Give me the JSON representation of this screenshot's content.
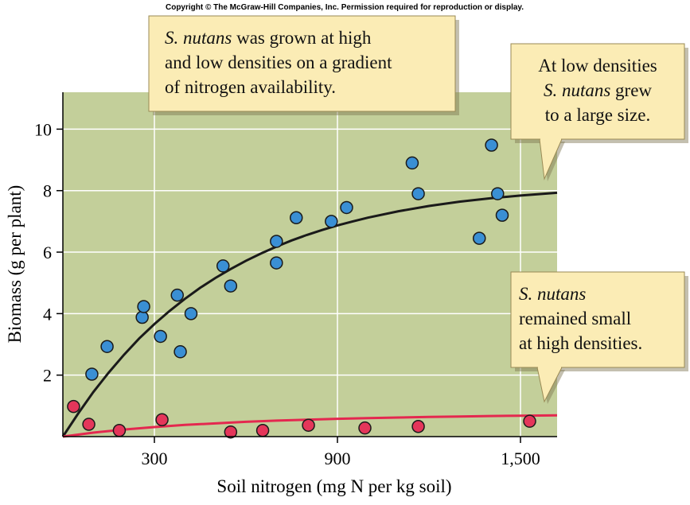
{
  "copyright": "Copyright © The McGraw-Hill Companies, Inc. Permission required for reproduction or display.",
  "colors": {
    "plot_background": "#c3cf9a",
    "grid": "#ffffff",
    "high_density_points": "#3a8fd4",
    "low_density_points": "#e4365a",
    "fit_high": "#1a1a1a",
    "fit_low": "#e4284f",
    "callout_fill": "#fbecb5",
    "callout_stroke": "#9a8a55"
  },
  "callouts": [
    {
      "id": "top",
      "lines": [
        [
          {
            "t": "S. nutans",
            "i": true
          },
          {
            "t": " was grown at high",
            "i": false
          }
        ],
        [
          {
            "t": "and low densities on a gradient",
            "i": false
          }
        ],
        [
          {
            "t": "of nitrogen availability.",
            "i": false
          }
        ]
      ]
    },
    {
      "id": "right-upper",
      "lines": [
        [
          {
            "t": "At low densities",
            "i": false
          }
        ],
        [
          {
            "t": "S. nutans",
            "i": true
          },
          {
            "t": " grew",
            "i": false
          }
        ],
        [
          {
            "t": "to a large size.",
            "i": false
          }
        ]
      ]
    },
    {
      "id": "right-lower",
      "lines": [
        [
          {
            "t": "S. nutans",
            "i": true
          }
        ],
        [
          {
            "t": "remained small",
            "i": false
          }
        ],
        [
          {
            "t": "at high densities.",
            "i": false
          }
        ]
      ]
    }
  ],
  "chart_data": {
    "type": "scatter",
    "title": "",
    "xlabel": "Soil nitrogen (mg N per kg soil)",
    "ylabel": "Biomass (g per plant)",
    "xlim": [
      0,
      1620
    ],
    "ylim": [
      0,
      11.2
    ],
    "xticks": [
      300,
      900,
      1500
    ],
    "xtick_labels": [
      "300",
      "900",
      "1,500"
    ],
    "yticks": [
      2,
      4,
      6,
      8,
      10
    ],
    "ytick_labels": [
      "2",
      "4",
      "6",
      "8",
      "10"
    ],
    "grid": true,
    "series": [
      {
        "style": "points",
        "color": "#3a8fd4",
        "x": [
          95,
          145,
          260,
          265,
          320,
          375,
          385,
          420,
          525,
          550,
          700,
          700,
          765,
          880,
          930,
          1145,
          1165,
          1365,
          1405,
          1425,
          1440
        ],
        "y": [
          2.03,
          2.93,
          3.88,
          4.23,
          3.26,
          4.6,
          2.76,
          4.0,
          5.55,
          4.9,
          6.35,
          5.65,
          7.12,
          7.0,
          7.45,
          8.9,
          7.9,
          6.45,
          9.48,
          7.9,
          7.2
        ]
      },
      {
        "style": "points",
        "color": "#e4365a",
        "x": [
          35,
          85,
          185,
          325,
          550,
          655,
          805,
          990,
          1165,
          1530
        ],
        "y": [
          0.98,
          0.4,
          0.2,
          0.55,
          0.15,
          0.2,
          0.37,
          0.28,
          0.33,
          0.5
        ]
      },
      {
        "style": "curve",
        "color": "#1a1a1a",
        "x": [
          0,
          50,
          100,
          150,
          200,
          250,
          300,
          350,
          400,
          450,
          500,
          550,
          600,
          650,
          700,
          750,
          800,
          850,
          900,
          950,
          1000,
          1100,
          1200,
          1300,
          1400,
          1500,
          1620
        ],
        "y": [
          0.0,
          0.75,
          1.45,
          2.08,
          2.66,
          3.19,
          3.66,
          4.09,
          4.48,
          4.84,
          5.16,
          5.45,
          5.72,
          5.96,
          6.18,
          6.38,
          6.56,
          6.72,
          6.87,
          7.0,
          7.12,
          7.33,
          7.5,
          7.64,
          7.75,
          7.84,
          7.93
        ]
      },
      {
        "style": "curve",
        "color": "#e4284f",
        "x": [
          0,
          100,
          200,
          300,
          400,
          500,
          600,
          700,
          800,
          900,
          1000,
          1100,
          1200,
          1300,
          1400,
          1500,
          1620
        ],
        "y": [
          0.0,
          0.13,
          0.23,
          0.31,
          0.38,
          0.43,
          0.48,
          0.52,
          0.55,
          0.58,
          0.6,
          0.62,
          0.64,
          0.655,
          0.67,
          0.68,
          0.69
        ]
      }
    ]
  }
}
